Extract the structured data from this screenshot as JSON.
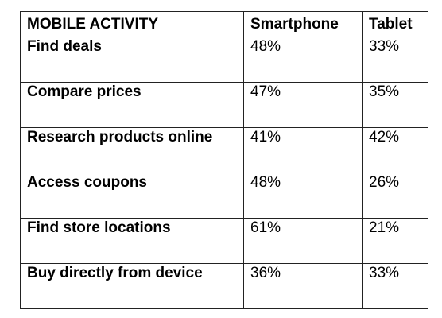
{
  "chart_data": {
    "type": "table",
    "columns": [
      "MOBILE ACTIVITY",
      "Smartphone",
      "Tablet"
    ],
    "rows": [
      {
        "activity": "Find deals",
        "smartphone": "48%",
        "tablet": "33%"
      },
      {
        "activity": "Compare prices",
        "smartphone": "47%",
        "tablet": "35%"
      },
      {
        "activity": "Research products online",
        "smartphone": "41%",
        "tablet": "42%"
      },
      {
        "activity": "Access coupons",
        "smartphone": "48%",
        "tablet": "26%"
      },
      {
        "activity": "Find store locations",
        "smartphone": "61%",
        "tablet": "21%"
      },
      {
        "activity": "Buy directly from device",
        "smartphone": "36%",
        "tablet": "33%"
      }
    ]
  }
}
